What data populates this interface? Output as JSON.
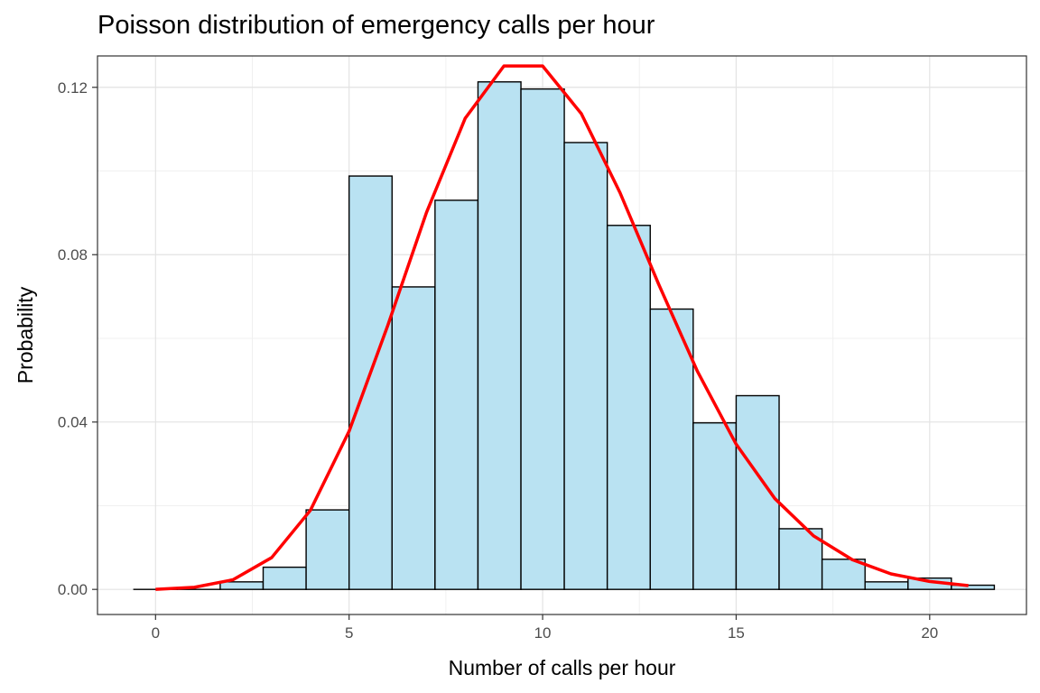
{
  "chart_data": {
    "type": "bar",
    "title": "Poisson distribution of emergency calls per hour",
    "xlabel": "Number of calls per hour",
    "ylabel": "Probability",
    "xlim": [
      -1.5,
      22.5
    ],
    "ylim": [
      -0.006,
      0.1275
    ],
    "x_ticks": [
      0,
      5,
      10,
      15,
      20
    ],
    "x_tick_labels": [
      "0",
      "5",
      "10",
      "15",
      "20"
    ],
    "y_ticks": [
      0.0,
      0.04,
      0.08,
      0.12
    ],
    "y_tick_labels": [
      "0.00",
      "0.04",
      "0.08",
      "0.12"
    ],
    "grid": true,
    "series": [
      {
        "kind": "histogram",
        "fill": "#b9e2f2",
        "edge": "#000000",
        "bins": [
          {
            "x0": -0.56,
            "x1": 0.56,
            "value": 0.0
          },
          {
            "x0": 0.56,
            "x1": 1.67,
            "value": 0.0
          },
          {
            "x0": 1.67,
            "x1": 2.78,
            "value": 0.0018
          },
          {
            "x0": 2.78,
            "x1": 3.89,
            "value": 0.0053
          },
          {
            "x0": 3.89,
            "x1": 5.0,
            "value": 0.019
          },
          {
            "x0": 5.0,
            "x1": 6.11,
            "value": 0.0988
          },
          {
            "x0": 6.11,
            "x1": 7.22,
            "value": 0.0723
          },
          {
            "x0": 7.22,
            "x1": 8.33,
            "value": 0.093
          },
          {
            "x0": 8.33,
            "x1": 9.44,
            "value": 0.1213
          },
          {
            "x0": 9.44,
            "x1": 10.56,
            "value": 0.1196
          },
          {
            "x0": 10.56,
            "x1": 11.67,
            "value": 0.1068
          },
          {
            "x0": 11.67,
            "x1": 12.78,
            "value": 0.087
          },
          {
            "x0": 12.78,
            "x1": 13.89,
            "value": 0.067
          },
          {
            "x0": 13.89,
            "x1": 15.0,
            "value": 0.0398
          },
          {
            "x0": 15.0,
            "x1": 16.11,
            "value": 0.0463
          },
          {
            "x0": 16.11,
            "x1": 17.22,
            "value": 0.0145
          },
          {
            "x0": 17.22,
            "x1": 18.33,
            "value": 0.0072
          },
          {
            "x0": 18.33,
            "x1": 19.44,
            "value": 0.0018
          },
          {
            "x0": 19.44,
            "x1": 20.56,
            "value": 0.0027
          },
          {
            "x0": 20.56,
            "x1": 21.67,
            "value": 0.001
          }
        ]
      },
      {
        "kind": "line",
        "color": "#ff0000",
        "x": [
          0,
          1,
          2,
          3,
          4,
          5,
          6,
          7,
          8,
          9,
          10,
          11,
          12,
          13,
          14,
          15,
          16,
          17,
          18,
          19,
          20,
          21
        ],
        "y": [
          0.0,
          0.0005,
          0.0023,
          0.0076,
          0.0189,
          0.0378,
          0.0631,
          0.0901,
          0.1126,
          0.1251,
          0.1251,
          0.1137,
          0.0948,
          0.0729,
          0.0521,
          0.0347,
          0.0217,
          0.0128,
          0.0071,
          0.0037,
          0.0019,
          0.0009
        ]
      }
    ]
  }
}
